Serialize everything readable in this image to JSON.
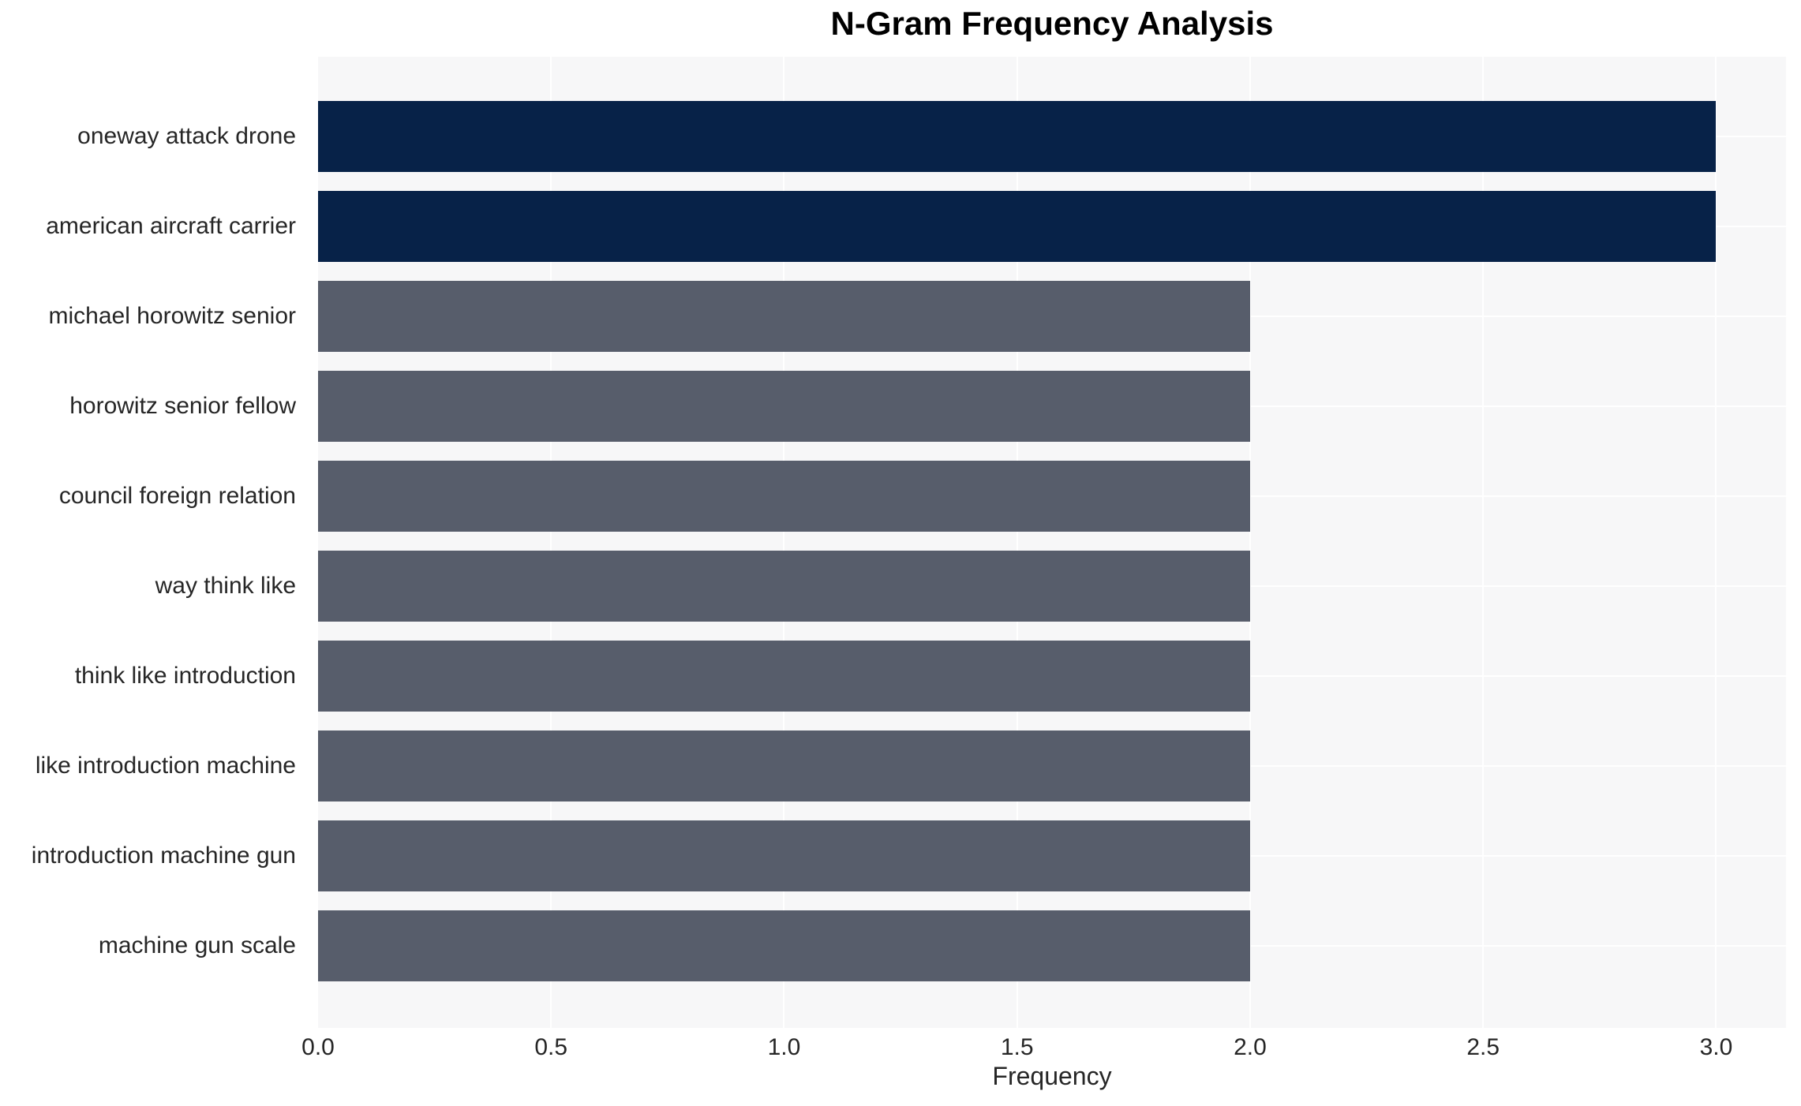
{
  "chart_data": {
    "type": "bar",
    "orientation": "horizontal",
    "title": "N-Gram Frequency Analysis",
    "xlabel": "Frequency",
    "ylabel": "",
    "categories": [
      "oneway attack drone",
      "american aircraft carrier",
      "michael horowitz senior",
      "horowitz senior fellow",
      "council foreign relation",
      "way think like",
      "think like introduction",
      "like introduction machine",
      "introduction machine gun",
      "machine gun scale"
    ],
    "values": [
      3.0,
      3.0,
      2.0,
      2.0,
      2.0,
      2.0,
      2.0,
      2.0,
      2.0,
      2.0
    ],
    "bar_colors": [
      "#072248",
      "#072248",
      "#575d6b",
      "#575d6b",
      "#575d6b",
      "#575d6b",
      "#575d6b",
      "#575d6b",
      "#575d6b",
      "#575d6b"
    ],
    "xtick_labels": [
      "0.0",
      "0.5",
      "1.0",
      "1.5",
      "2.0",
      "2.5",
      "3.0"
    ],
    "xtick_values": [
      0.0,
      0.5,
      1.0,
      1.5,
      2.0,
      2.5,
      3.0
    ],
    "xlim": [
      0,
      3.15
    ],
    "grid": true,
    "legend": "none",
    "colors": {
      "highlight_bar": "#072248",
      "normal_bar": "#575d6b",
      "plot_background": "#f7f7f8",
      "gridline": "#ffffff",
      "tick_text": "#262626",
      "title_text": "#000000"
    }
  }
}
